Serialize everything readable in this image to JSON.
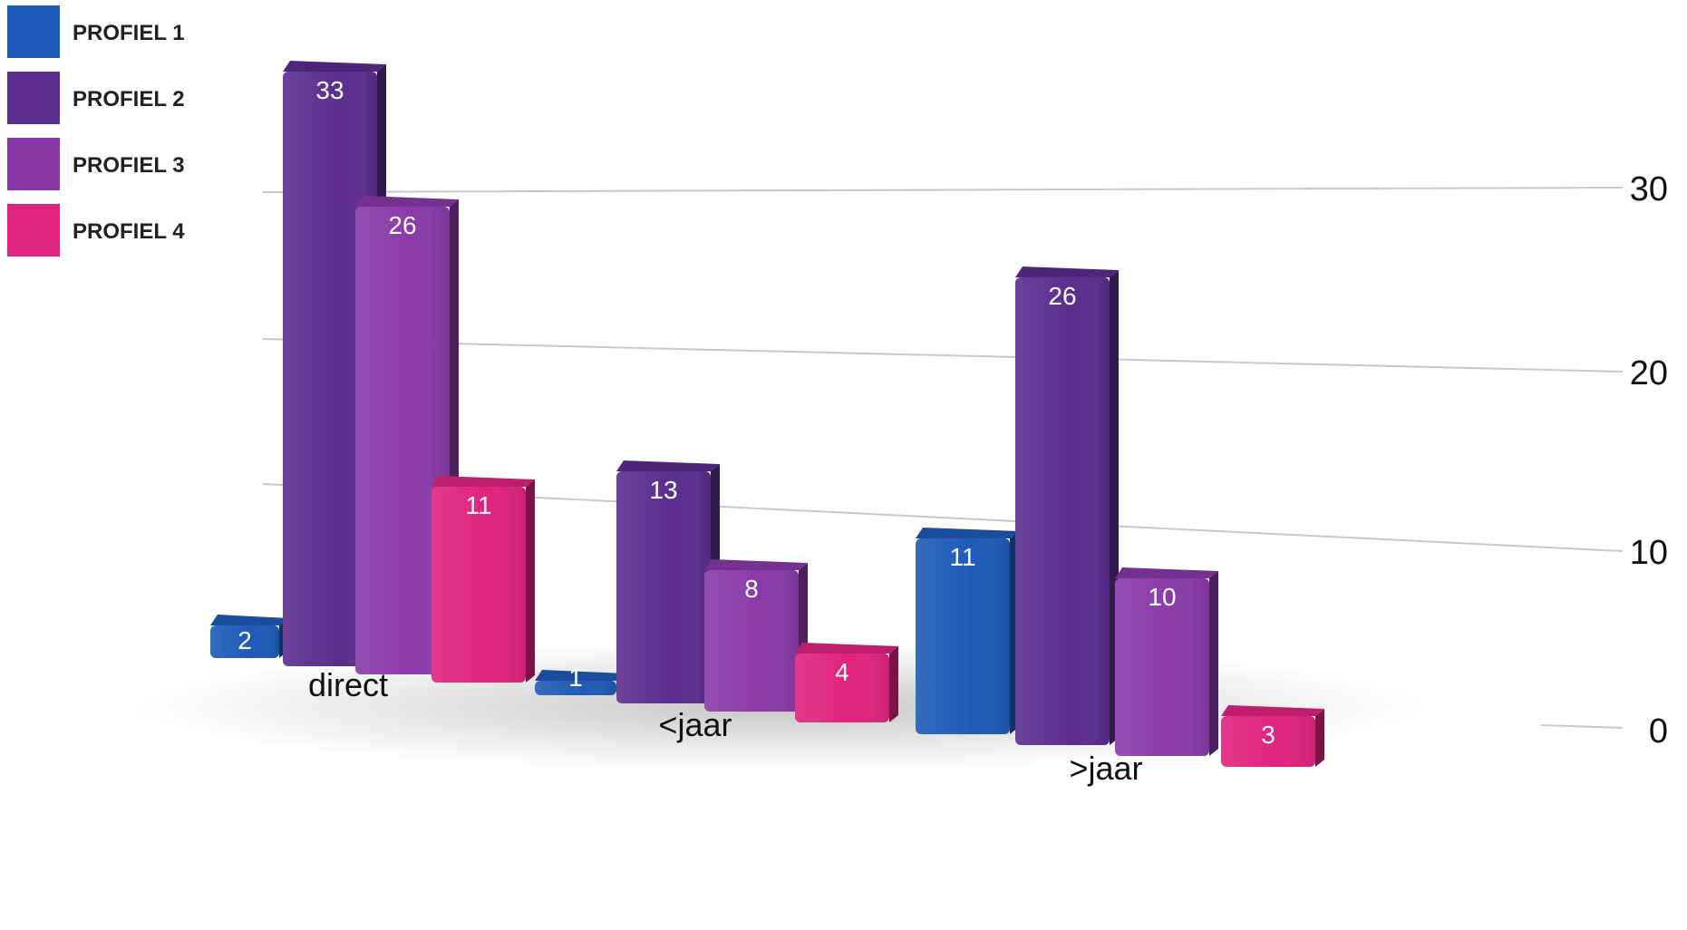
{
  "chart_data": {
    "type": "bar",
    "categories": [
      "direct",
      "<jaar",
      ">jaar"
    ],
    "series": [
      {
        "name": "PROFIEL 1",
        "values": [
          2,
          1,
          11
        ],
        "color": "#1e5bb8"
      },
      {
        "name": "PROFIEL 2",
        "values": [
          33,
          13,
          26
        ],
        "color": "#5b2d8e"
      },
      {
        "name": "PROFIEL 3",
        "values": [
          26,
          8,
          10
        ],
        "color": "#8a3aa8"
      },
      {
        "name": "PROFIEL 4",
        "values": [
          11,
          4,
          3
        ],
        "color": "#e0237f"
      }
    ],
    "y_ticks": [
      "0",
      "10",
      "20",
      "30"
    ],
    "ylim": [
      0,
      35
    ],
    "grid": true,
    "legend_position": "top-left",
    "style": "3d-perspective"
  }
}
